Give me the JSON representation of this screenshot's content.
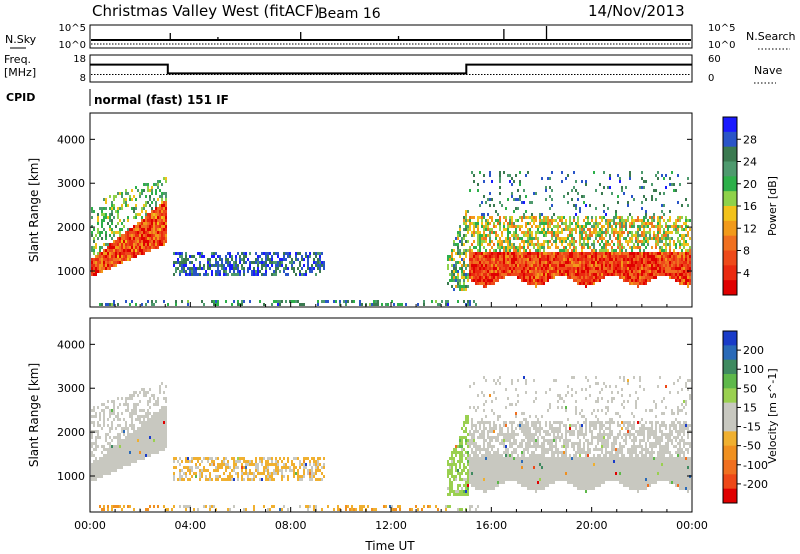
{
  "header": {
    "title": "Christmas Valley West (fitACF)",
    "beam": "Beam 16",
    "date": "14/Nov/2013"
  },
  "strip_labels": {
    "nsky": "N.Sky",
    "nsky_ticks": [
      "10^5",
      "10^0"
    ],
    "nsearch": "N.Search",
    "nsearch_ticks": [
      "10^5",
      "10^0"
    ],
    "freq_line1": "Freq.",
    "freq_line2": "[MHz]",
    "freq_ticks": [
      "18",
      "8"
    ],
    "nave": "Nave",
    "nave_ticks": [
      "60",
      "0"
    ],
    "cpid": "CPID",
    "cpid_value": "normal (fast) 151 IF"
  },
  "chart_data": [
    {
      "type": "line",
      "title": "Freq. / Nave",
      "ylabel": "Freq. [MHz]",
      "ylim": [
        8,
        18
      ],
      "x_hours": [
        0,
        3.1,
        3.1,
        15.0,
        15.0,
        24
      ],
      "freq": [
        15,
        15,
        11,
        11,
        15,
        15
      ],
      "nave_ylim": [
        0,
        60
      ],
      "nave_approx": 15
    },
    {
      "type": "heatmap",
      "title": "Power",
      "ylabel": "Slant Range [km]",
      "xlabel": "Time UT",
      "ylim": [
        180,
        4600
      ],
      "yticks": [
        "4000",
        "3000",
        "2000",
        "1000"
      ],
      "xticks": [
        "00:00",
        "04:00",
        "08:00",
        "12:00",
        "16:00",
        "20:00",
        "00:00"
      ],
      "colorbar": {
        "label": "Power [dB]",
        "ticks": [
          "28",
          "24",
          "20",
          "16",
          "12",
          "8",
          "4"
        ],
        "colors": [
          "#1a1aff",
          "#2a55c8",
          "#3b7a50",
          "#4e9a6e",
          "#2db04a",
          "#8fd24a",
          "#f2c21a",
          "#f29a1a",
          "#f07020",
          "#ee4a1a",
          "#ea2a10",
          "#e00000"
        ]
      }
    },
    {
      "type": "heatmap",
      "title": "Velocity",
      "ylabel": "Slant Range [km]",
      "xlabel": "Time UT",
      "ylim": [
        180,
        4600
      ],
      "yticks": [
        "4000",
        "3000",
        "2000",
        "1000"
      ],
      "xticks": [
        "00:00",
        "04:00",
        "08:00",
        "12:00",
        "16:00",
        "20:00",
        "00:00"
      ],
      "colorbar": {
        "label": "Velocity [m s^-1]",
        "ticks": [
          "200",
          "100",
          "50",
          "15",
          "-15",
          "-50",
          "-100",
          "-200"
        ],
        "colors": [
          "#1a3cc8",
          "#2a6ab8",
          "#3f8a60",
          "#5eb84a",
          "#9ad050",
          "#c8c8c0",
          "#c8c8c0",
          "#f0b030",
          "#f09020",
          "#f07020",
          "#ee4818",
          "#e00000"
        ]
      }
    }
  ]
}
